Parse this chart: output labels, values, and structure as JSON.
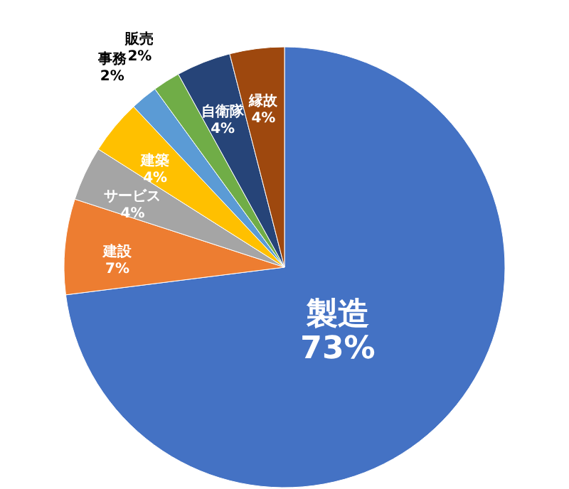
{
  "chart_data": {
    "type": "pie",
    "categories": [
      "製造",
      "建設",
      "サービス",
      "建築",
      "事務",
      "販売",
      "自衛隊",
      "縁故"
    ],
    "values": [
      73,
      7,
      4,
      4,
      2,
      2,
      4,
      4
    ],
    "value_labels": [
      "73%",
      "7%",
      "4%",
      "4%",
      "2%",
      "2%",
      "4%",
      "4%"
    ],
    "colors": [
      "#4472c4",
      "#ed7d31",
      "#a5a5a5",
      "#ffc000",
      "#5b9bd5",
      "#70ad47",
      "#264478",
      "#9e480e"
    ]
  }
}
